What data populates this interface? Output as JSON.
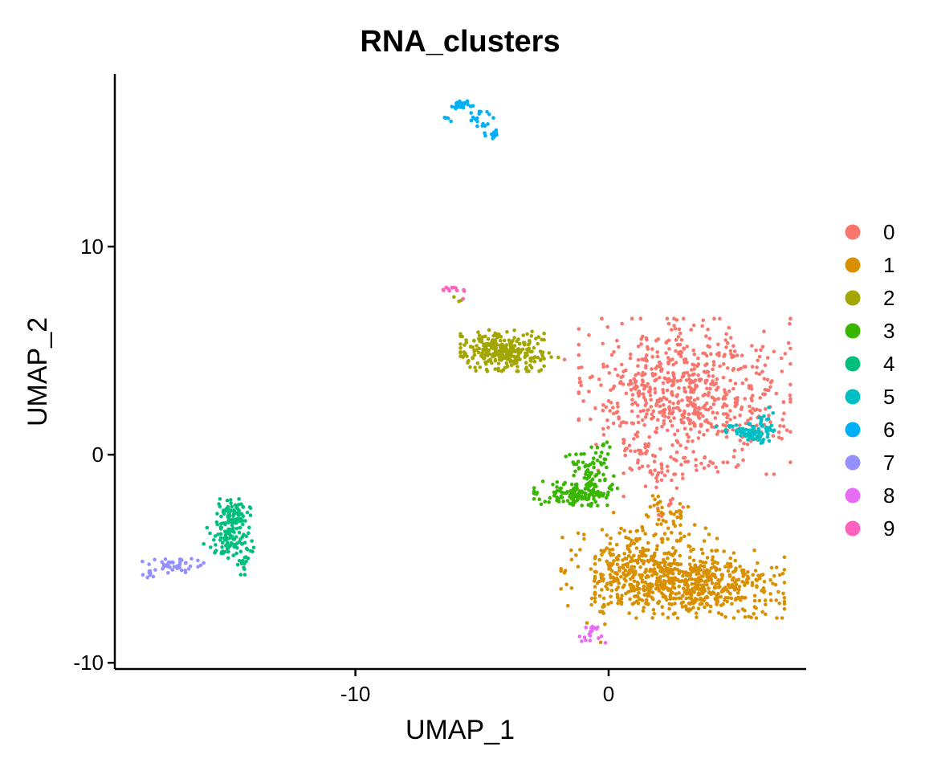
{
  "chart_data": {
    "type": "scatter",
    "title": "RNA_clusters",
    "xlabel": "UMAP_1",
    "ylabel": "UMAP_2",
    "xlim": [
      -19.5,
      7.8
    ],
    "ylim": [
      -10.3,
      18.3
    ],
    "x_ticks": [
      {
        "value": -10,
        "label": "-10"
      },
      {
        "value": 0,
        "label": "0"
      }
    ],
    "y_ticks": [
      {
        "value": -10,
        "label": "-10"
      },
      {
        "value": 0,
        "label": "0"
      },
      {
        "value": 10,
        "label": "10"
      }
    ],
    "grid": false,
    "legend_position": "right",
    "series": [
      {
        "name": "0",
        "color": "#F8766D",
        "regions": [
          {
            "cx": 3.0,
            "cy": 2.8,
            "sx": 1.9,
            "sy": 1.7,
            "n": 700
          },
          {
            "cx": 1.8,
            "cy": -0.8,
            "sx": 0.55,
            "sy": 0.6,
            "n": 40
          },
          {
            "cx": 2.3,
            "cy": -2.5,
            "sx": 0.4,
            "sy": 0.3,
            "n": 8
          },
          {
            "cx": 6.0,
            "cy": 1.7,
            "sx": 0.25,
            "sy": 0.3,
            "n": 6
          },
          {
            "cx": -1.9,
            "cy": 4.6,
            "sx": 0.1,
            "sy": 0.1,
            "n": 1
          }
        ]
      },
      {
        "name": "1",
        "color": "#D89000",
        "regions": [
          {
            "cx": 3.2,
            "cy": -6.2,
            "sx": 1.7,
            "sy": 0.75,
            "n": 600
          },
          {
            "cx": 1.2,
            "cy": -5.2,
            "sx": 1.4,
            "sy": 1.1,
            "n": 250
          },
          {
            "cx": 2.3,
            "cy": -3.0,
            "sx": 0.5,
            "sy": 0.6,
            "n": 40
          },
          {
            "cx": -0.2,
            "cy": -7.7,
            "sx": 0.3,
            "sy": 0.6,
            "n": 8
          }
        ]
      },
      {
        "name": "2",
        "color": "#A3A500",
        "regions": [
          {
            "cx": -4.2,
            "cy": 5.0,
            "sx": 0.75,
            "sy": 0.45,
            "n": 300
          },
          {
            "cx": -2.8,
            "cy": 4.7,
            "sx": 0.4,
            "sy": 0.12,
            "n": 12
          },
          {
            "cx": -5.9,
            "cy": 7.5,
            "sx": 0.2,
            "sy": 0.4,
            "n": 3
          },
          {
            "cx": -6.3,
            "cy": 16.2,
            "sx": 0.1,
            "sy": 0.1,
            "n": 1
          }
        ]
      },
      {
        "name": "3",
        "color": "#39B600",
        "regions": [
          {
            "cx": -1.3,
            "cy": -1.9,
            "sx": 0.75,
            "sy": 0.28,
            "n": 130
          },
          {
            "cx": -0.7,
            "cy": -0.8,
            "sx": 0.45,
            "sy": 0.55,
            "n": 70
          },
          {
            "cx": -0.1,
            "cy": 0.3,
            "sx": 0.15,
            "sy": 0.3,
            "n": 6
          }
        ]
      },
      {
        "name": "4",
        "color": "#00BF7D",
        "regions": [
          {
            "cx": -14.8,
            "cy": -2.9,
            "sx": 0.3,
            "sy": 0.35,
            "n": 80
          },
          {
            "cx": -15.0,
            "cy": -4.0,
            "sx": 0.45,
            "sy": 0.45,
            "n": 90
          },
          {
            "cx": -14.4,
            "cy": -5.0,
            "sx": 0.2,
            "sy": 0.35,
            "n": 20
          }
        ]
      },
      {
        "name": "5",
        "color": "#00BFC4",
        "regions": [
          {
            "cx": 5.8,
            "cy": 1.0,
            "sx": 0.35,
            "sy": 0.22,
            "n": 60
          },
          {
            "cx": 6.2,
            "cy": 1.5,
            "sx": 0.18,
            "sy": 0.35,
            "n": 25
          },
          {
            "cx": 4.8,
            "cy": 1.3,
            "sx": 0.35,
            "sy": 0.12,
            "n": 15
          }
        ]
      },
      {
        "name": "6",
        "color": "#00B0F6",
        "regions": [
          {
            "cx": -5.8,
            "cy": 16.8,
            "sx": 0.2,
            "sy": 0.12,
            "n": 28
          },
          {
            "cx": -5.1,
            "cy": 16.1,
            "sx": 0.25,
            "sy": 0.25,
            "n": 18
          },
          {
            "cx": -4.6,
            "cy": 15.4,
            "sx": 0.15,
            "sy": 0.12,
            "n": 12
          },
          {
            "cx": -6.4,
            "cy": 16.1,
            "sx": 0.12,
            "sy": 0.1,
            "n": 4
          }
        ]
      },
      {
        "name": "7",
        "color": "#9590FF",
        "regions": [
          {
            "cx": -17.2,
            "cy": -5.3,
            "sx": 0.55,
            "sy": 0.18,
            "n": 45
          },
          {
            "cx": -18.2,
            "cy": -5.7,
            "sx": 0.1,
            "sy": 0.12,
            "n": 8
          }
        ]
      },
      {
        "name": "8",
        "color": "#E76BF3",
        "regions": [
          {
            "cx": -0.6,
            "cy": -8.5,
            "sx": 0.35,
            "sy": 0.25,
            "n": 14
          },
          {
            "cx": -1.0,
            "cy": -8.9,
            "sx": 0.12,
            "sy": 0.1,
            "n": 5
          }
        ]
      },
      {
        "name": "9",
        "color": "#FF62BC",
        "regions": [
          {
            "cx": -6.3,
            "cy": 7.9,
            "sx": 0.25,
            "sy": 0.08,
            "n": 10
          },
          {
            "cx": -5.7,
            "cy": 7.7,
            "sx": 0.12,
            "sy": 0.1,
            "n": 3
          }
        ]
      }
    ]
  }
}
